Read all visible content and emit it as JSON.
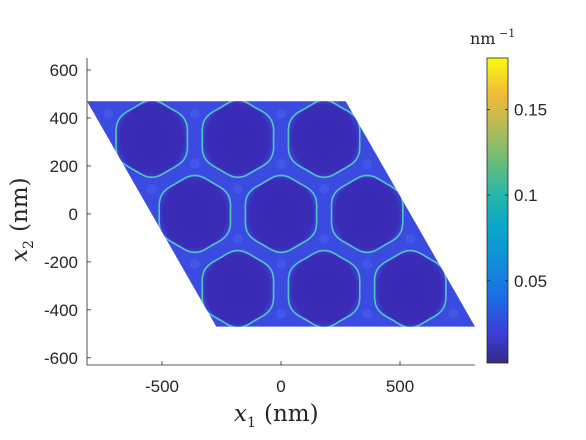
{
  "chart_data": {
    "type": "heatmap",
    "title": "",
    "xlabel": {
      "symbol": "x",
      "sub": "1",
      "unit": "(nm)"
    },
    "ylabel": {
      "symbol": "x",
      "sub": "2",
      "unit": "(nm)"
    },
    "xlim": [
      -815,
      815
    ],
    "ylim": [
      -630,
      650
    ],
    "xticks": [
      -500,
      0,
      500
    ],
    "xtick_labels": [
      "-500",
      "0",
      "500"
    ],
    "yticks": [
      -600,
      -400,
      -200,
      0,
      200,
      400,
      600
    ],
    "ytick_labels": [
      "-600",
      "-400",
      "-200",
      "0",
      "200",
      "400",
      "600"
    ],
    "colorbar": {
      "label_base": "nm",
      "label_exp": "−1",
      "range": [
        0.002,
        0.18
      ],
      "ticks": [
        0.05,
        0.1,
        0.15
      ],
      "tick_labels": [
        "0.05",
        "0.1",
        "0.15"
      ],
      "colormap": "parula"
    },
    "domain": {
      "shape": "parallelogram",
      "vertices": [
        [
          -815,
          470
        ],
        [
          272,
          470
        ],
        [
          815,
          -470
        ],
        [
          -272,
          -470
        ]
      ]
    },
    "background_value": 0.03,
    "inclusion_value": 0.003,
    "boundary_value": 0.08,
    "inclusion_radius": 155,
    "inclusion_centers": [
      [
        -543,
        313
      ],
      [
        -181,
        313
      ],
      [
        181,
        313
      ],
      [
        -362,
        0
      ],
      [
        0,
        0
      ],
      [
        362,
        0
      ],
      [
        -181,
        -313
      ],
      [
        181,
        -313
      ],
      [
        543,
        -313
      ]
    ],
    "grid": false,
    "legend": "none",
    "colors": {
      "background_field": "#3b4ae0",
      "inclusion_fill": "#3a28b3",
      "inclusion_edge": "#52c7c0",
      "axis": "#262626"
    }
  }
}
